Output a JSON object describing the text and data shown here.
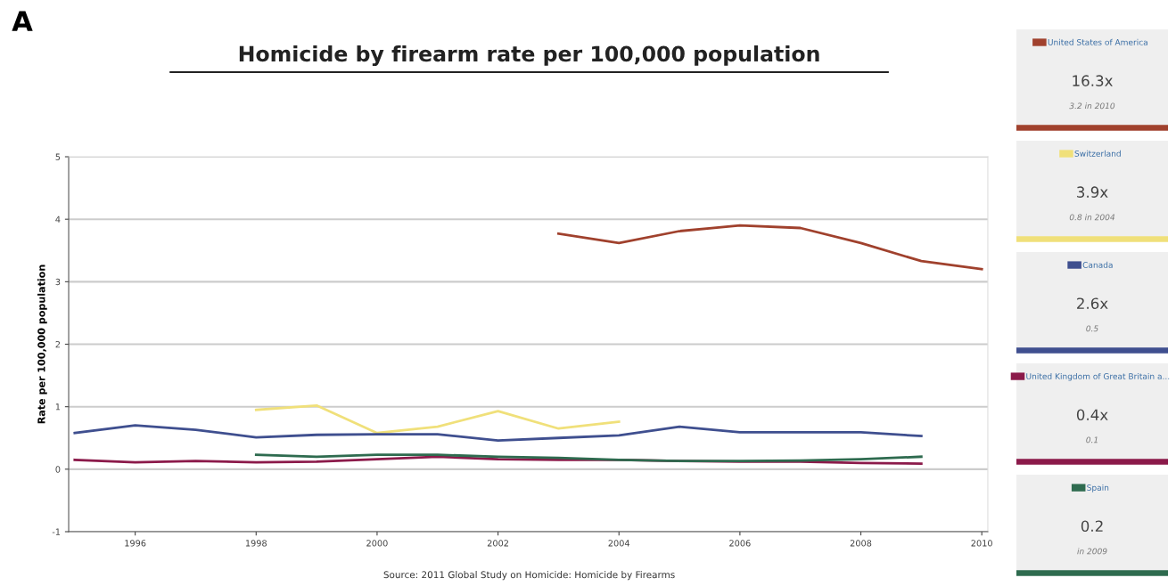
{
  "chart_data": {
    "type": "line",
    "title": "Homicide by firearm rate per 100,000 population",
    "ylabel": "Rate per 100,000 population",
    "x": [
      1995,
      1996,
      1997,
      1998,
      1999,
      2000,
      2001,
      2002,
      2003,
      2004,
      2005,
      2006,
      2007,
      2008,
      2009,
      2010
    ],
    "series": [
      {
        "name": "United States of America",
        "color": "#a0412d",
        "values": [
          null,
          null,
          null,
          null,
          null,
          null,
          null,
          null,
          3.77,
          3.62,
          3.81,
          3.9,
          3.86,
          3.62,
          3.33,
          3.2
        ]
      },
      {
        "name": "Switzerland",
        "color": "#f0e07a",
        "values": [
          null,
          null,
          null,
          0.95,
          1.02,
          0.58,
          0.68,
          0.93,
          0.65,
          0.76,
          null,
          null,
          null,
          null,
          null,
          null
        ]
      },
      {
        "name": "Canada",
        "color": "#3f4f8f",
        "values": [
          0.58,
          0.7,
          0.63,
          0.51,
          0.55,
          0.56,
          0.56,
          0.46,
          0.5,
          0.54,
          0.68,
          0.59,
          0.59,
          0.59,
          0.53,
          null
        ]
      },
      {
        "name": "United Kingdom of Great Britain a...",
        "color": "#8b1a4a",
        "values": [
          0.15,
          0.11,
          0.13,
          0.11,
          0.12,
          0.16,
          0.2,
          0.16,
          0.15,
          0.15,
          0.13,
          0.12,
          0.12,
          0.1,
          0.09,
          null
        ]
      },
      {
        "name": "Spain",
        "color": "#2e6b4f",
        "values": [
          null,
          null,
          null,
          0.23,
          0.2,
          0.23,
          0.23,
          0.2,
          0.18,
          0.15,
          0.13,
          0.13,
          0.14,
          0.16,
          0.2,
          null
        ]
      }
    ],
    "xlim": [
      1994.9,
      2010.1
    ],
    "xticks": [
      1996,
      1998,
      2000,
      2002,
      2004,
      2006,
      2008,
      2010
    ],
    "ylim": [
      -1,
      5
    ],
    "yticks": [
      -1,
      0,
      1,
      2,
      3,
      4,
      5
    ],
    "grid": "y",
    "legend": "right",
    "marker": "none",
    "line_style": "solid",
    "annotations": [
      "A",
      "Source: 2011 Global Study on Homicide: Homicide by Firearms",
      "16.3x",
      "3.2 in 2010",
      "3.9x",
      "0.8 in 2004",
      "2.6x",
      "0.5",
      "0.4x",
      "0.1",
      "0.2",
      "in 2009"
    ]
  }
}
